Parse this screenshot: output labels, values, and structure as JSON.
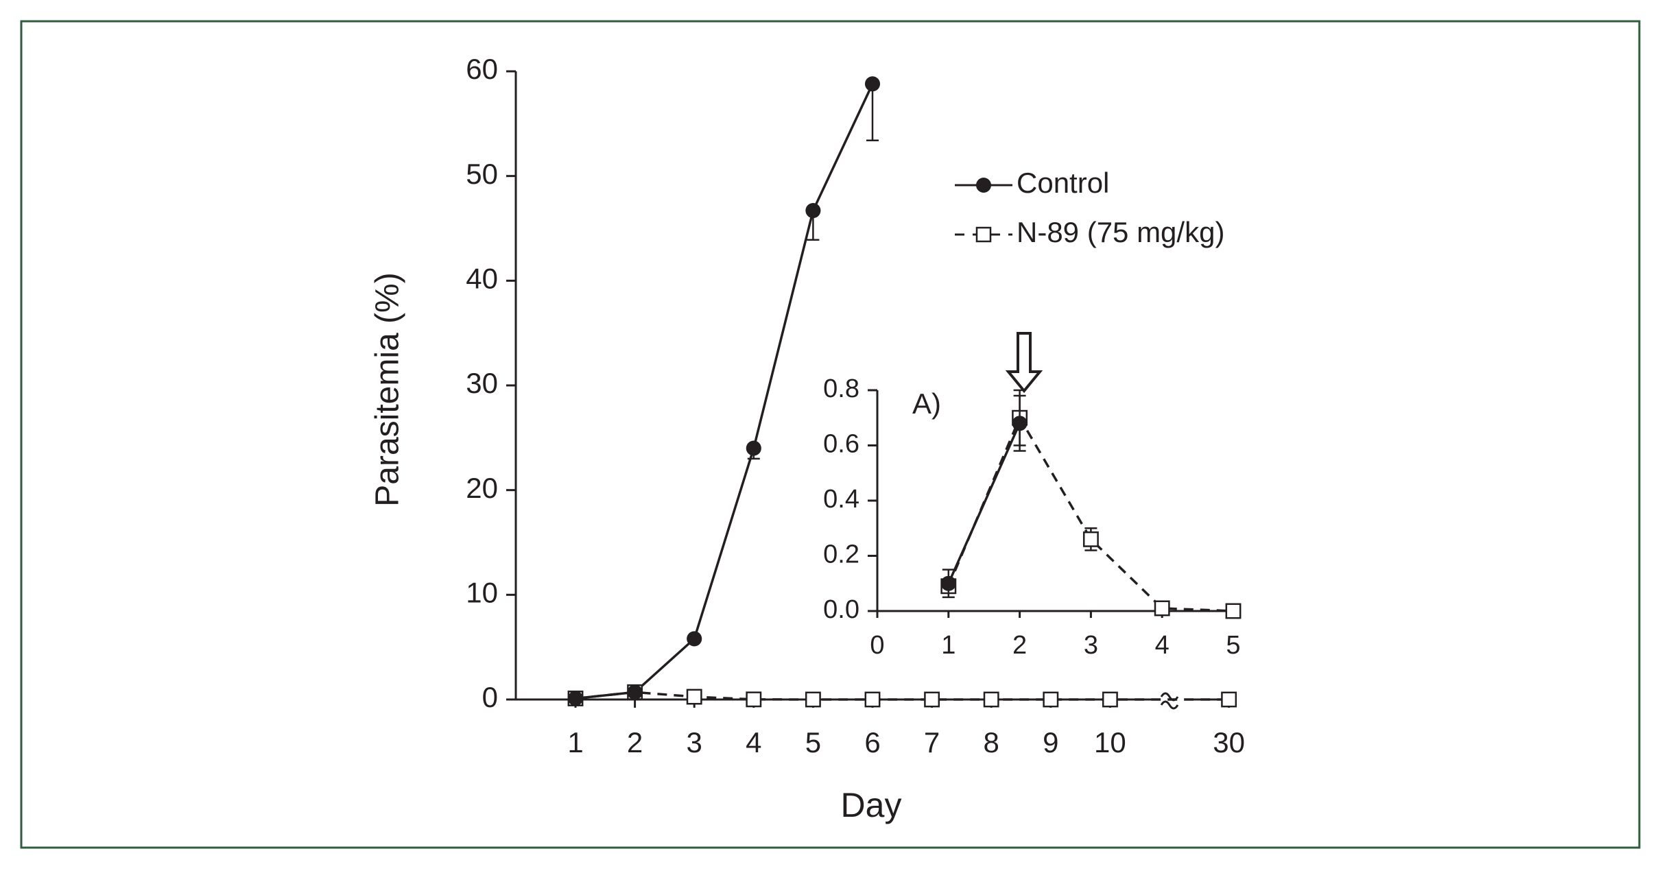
{
  "chart_data": [
    {
      "type": "line",
      "xlabel": "Day",
      "ylabel": "Parasitemia (%)",
      "categories": [
        1,
        2,
        3,
        4,
        5,
        6,
        7,
        8,
        9,
        10,
        30
      ],
      "axis_break_before": 30,
      "ylim": [
        0,
        60
      ],
      "yticks": [
        0,
        10,
        20,
        30,
        40,
        50,
        60
      ],
      "error_direction": "down",
      "legend": "upper right",
      "series": [
        {
          "name": "Control",
          "color": "#231f20",
          "marker": "circle",
          "dash": false,
          "values": [
            0.1,
            0.7,
            5.8,
            24,
            46.7,
            58.8,
            null,
            null,
            null,
            null,
            null
          ],
          "errors": [
            null,
            null,
            null,
            1,
            2.8,
            5.4,
            null,
            null,
            null,
            null,
            null
          ]
        },
        {
          "name": "N-89 (75 mg/kg)",
          "color": "#231f20",
          "marker": "square",
          "dash": true,
          "values": [
            0.1,
            0.7,
            0.26,
            0.01,
            0,
            0,
            0,
            0,
            0,
            0,
            0
          ],
          "errors": [
            null,
            null,
            null,
            null,
            null,
            null,
            null,
            null,
            null,
            null,
            null
          ]
        }
      ]
    },
    {
      "type": "line",
      "annotation": "A)",
      "xlim": [
        0,
        5
      ],
      "xticks": [
        0,
        1,
        2,
        3,
        4,
        5
      ],
      "ylim": [
        0,
        0.8
      ],
      "yticks": [
        {
          "value": 0,
          "label": "0.0"
        },
        0.2,
        0.4,
        0.6,
        0.8
      ],
      "error_direction": "both",
      "series": [
        {
          "name": "Control",
          "color": "#231f20",
          "marker": "circle",
          "dash": false,
          "x": [
            1,
            2
          ],
          "values": [
            0.1,
            0.68
          ],
          "errors": [
            0.05,
            0.1
          ]
        },
        {
          "name": "N-89 (75 mg/kg)",
          "color": "#231f20",
          "marker": "square",
          "dash": true,
          "x": [
            1,
            2,
            3,
            4,
            5
          ],
          "values": [
            0.09,
            0.7,
            0.26,
            0.01,
            0
          ],
          "errors": [
            0.02,
            0.1,
            0.04,
            null,
            null
          ]
        }
      ]
    }
  ]
}
